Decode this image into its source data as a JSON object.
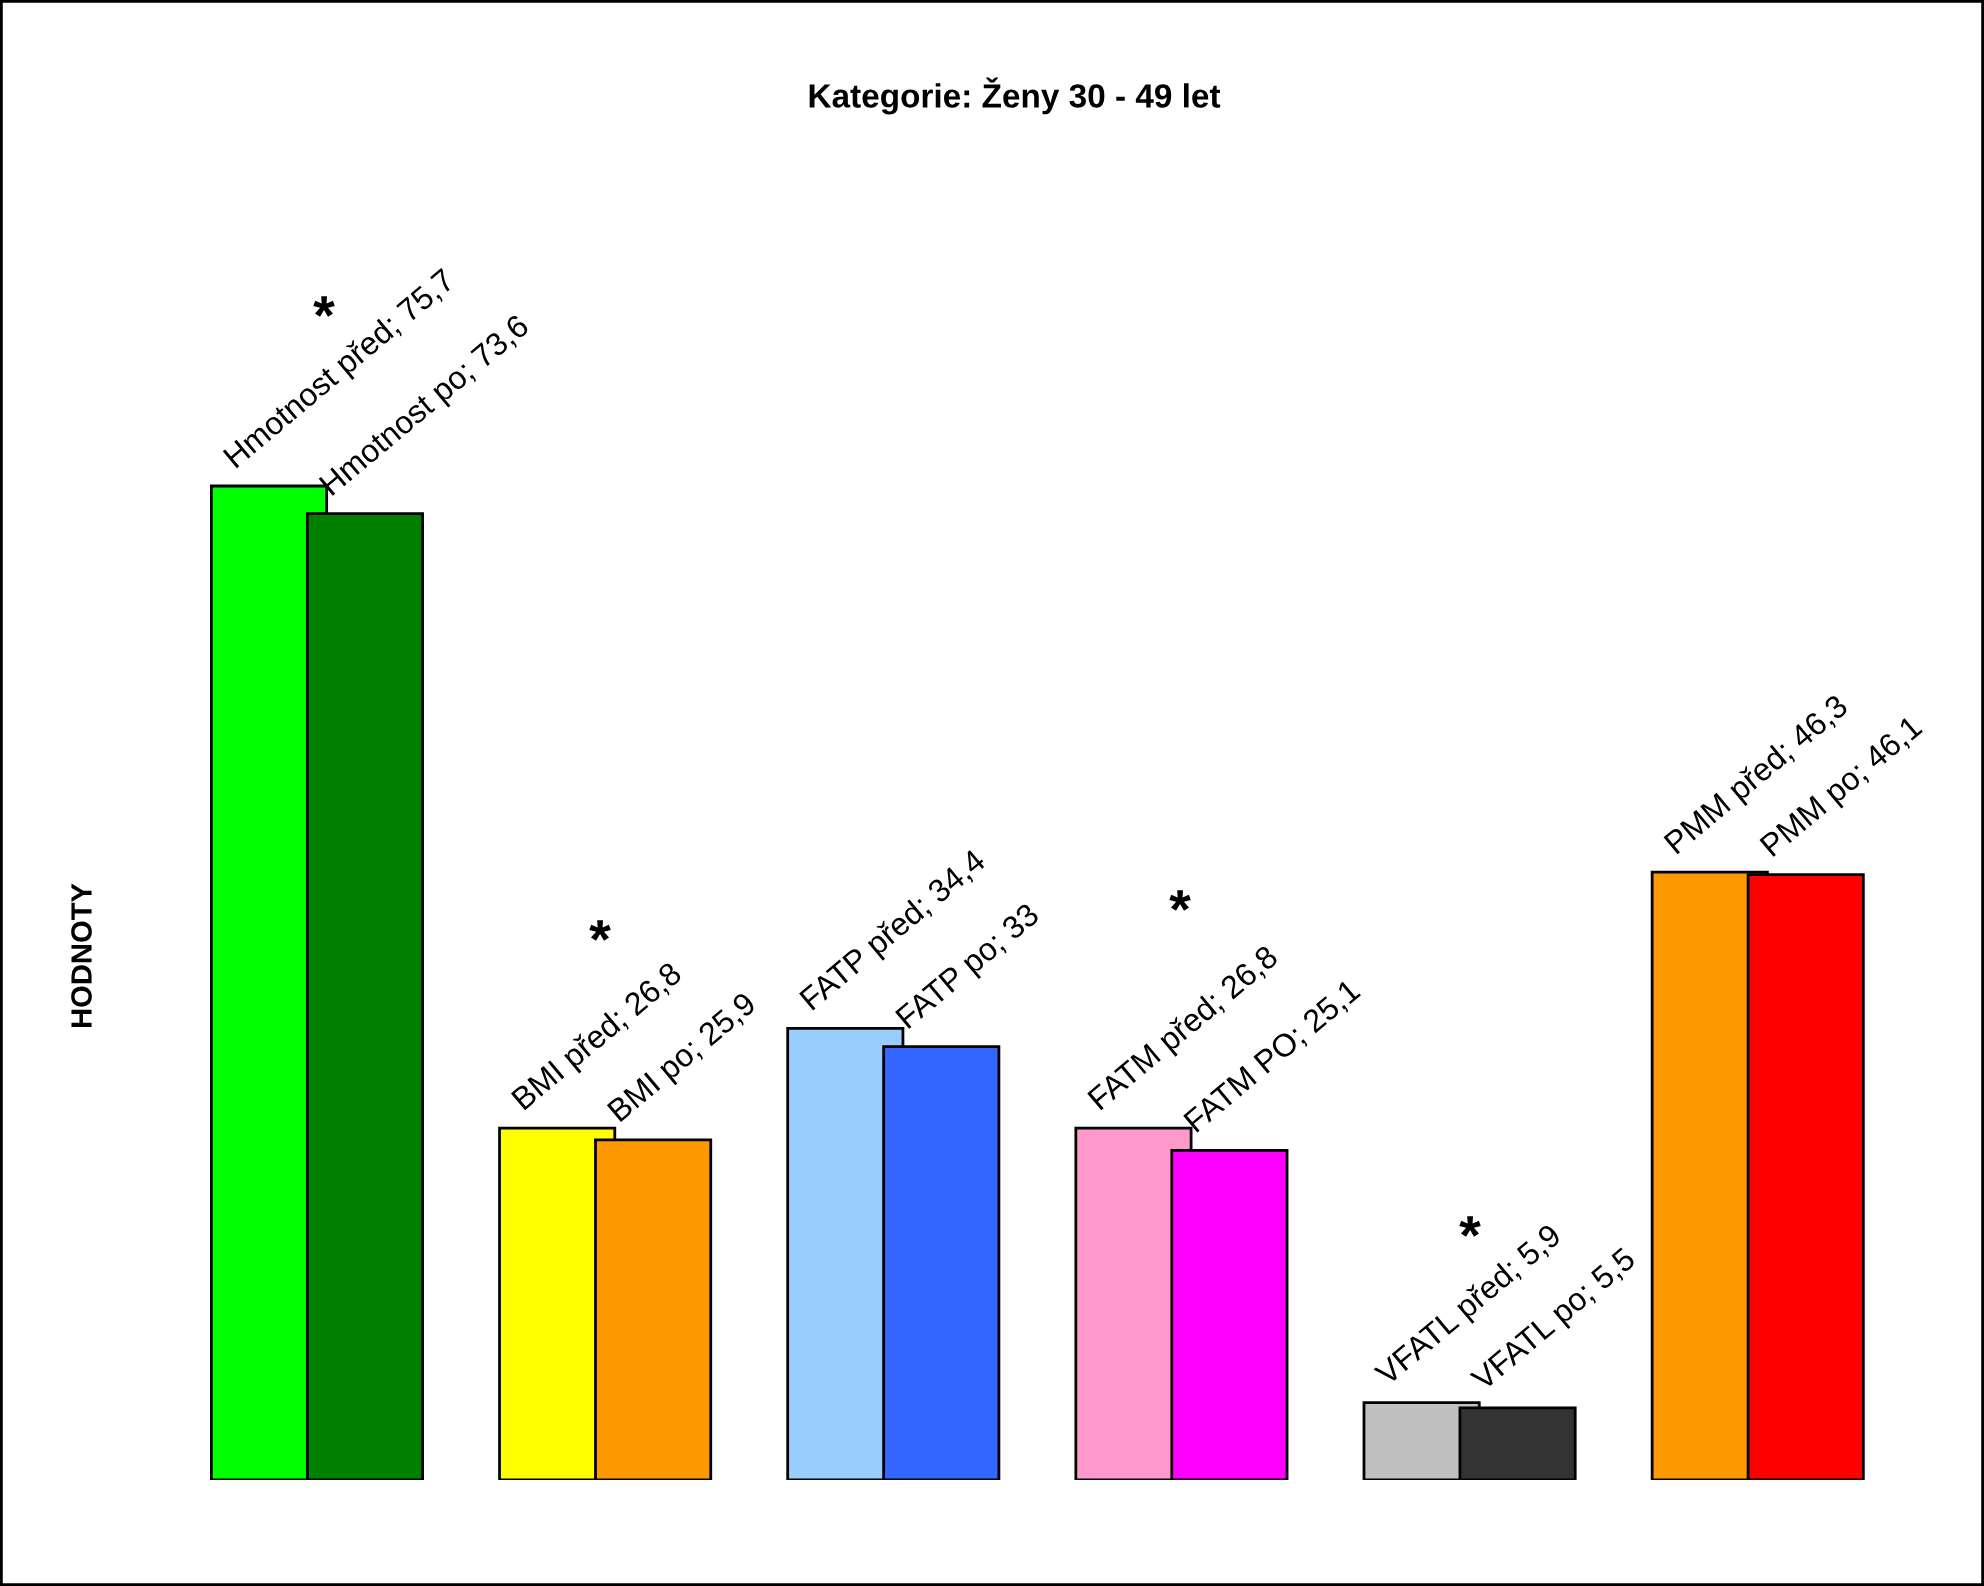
{
  "chart_data": {
    "type": "bar",
    "title": "Kategorie: Ženy 30 - 49 let",
    "ylabel": "HODNOTY",
    "categories": [
      null,
      null,
      null,
      null,
      null,
      null
    ],
    "series": [
      {
        "colors": [
          "#00ff00",
          "#ffff00",
          "#99ccff",
          "#ff99cc",
          "#c0c0c0",
          "#ff9900"
        ],
        "values": [
          75.7,
          26.8,
          34.4,
          26.8,
          5.9,
          46.3
        ],
        "value_labels": [
          "Hmotnost před; 75,7",
          "BMI před; 26,8",
          "FATP před; 34,4",
          "FATM před; 26,8",
          "VFATL před; 5,9",
          "PMM před; 46,3"
        ]
      },
      {
        "colors": [
          "#008000",
          "#ff9900",
          "#3366ff",
          "#ff00ff",
          "#333333",
          "#ff0000"
        ],
        "values": [
          73.6,
          25.9,
          33,
          25.1,
          5.5,
          46.1
        ],
        "value_labels": [
          "Hmotnost po; 73,6",
          "BMI po; 25,9",
          "FATP po; 33",
          "FATM PO; 25,1",
          "VFATL po; 5,5",
          "PMM po; 46,1"
        ]
      }
    ],
    "annotations": [
      "*",
      "*",
      "*",
      "*"
    ],
    "grid": false,
    "legend": false
  }
}
